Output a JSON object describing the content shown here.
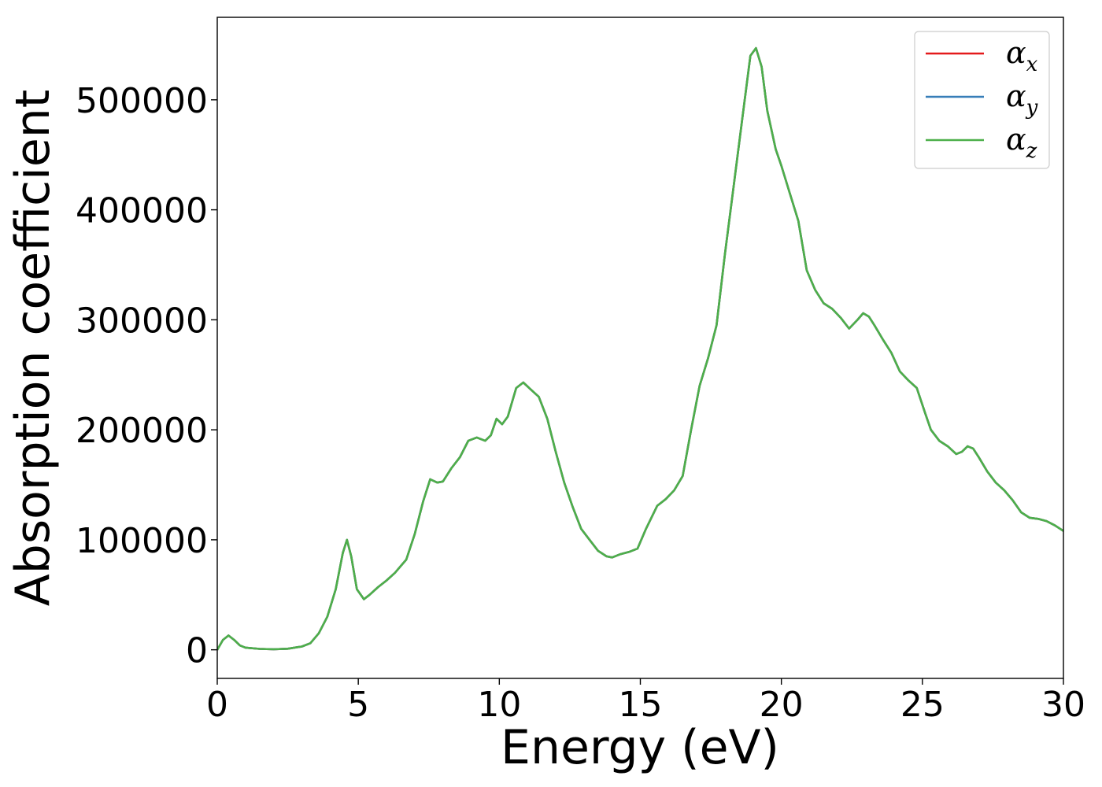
{
  "chart_data": {
    "type": "line",
    "title": "",
    "xlabel": "Energy (eV)",
    "ylabel": "Absorption coefficient",
    "xlim": [
      0,
      30
    ],
    "ylim": [
      -26000,
      575000
    ],
    "xticks": [
      0,
      5,
      10,
      15,
      20,
      25,
      30
    ],
    "yticks": [
      0,
      100000,
      200000,
      300000,
      400000,
      500000
    ],
    "grid": false,
    "legend_position": "top-right",
    "colors": {
      "alpha_x": "#e41a1c",
      "alpha_y": "#377eb8",
      "alpha_z": "#4daf4a"
    },
    "legend": [
      {
        "key": "alpha_x",
        "symbol": "α",
        "sub": "x"
      },
      {
        "key": "alpha_y",
        "symbol": "α",
        "sub": "y"
      },
      {
        "key": "alpha_z",
        "symbol": "α",
        "sub": "z"
      }
    ],
    "x": [
      0,
      0.2,
      0.4,
      0.6,
      0.8,
      1.0,
      1.5,
      2.0,
      2.5,
      3.0,
      3.3,
      3.6,
      3.9,
      4.2,
      4.45,
      4.6,
      4.75,
      4.95,
      5.2,
      5.4,
      5.7,
      6.0,
      6.3,
      6.7,
      7.0,
      7.3,
      7.55,
      7.8,
      8.0,
      8.3,
      8.6,
      8.9,
      9.2,
      9.5,
      9.7,
      9.9,
      10.1,
      10.3,
      10.6,
      10.85,
      11.1,
      11.4,
      11.7,
      12.0,
      12.3,
      12.6,
      12.9,
      13.2,
      13.5,
      13.8,
      14.0,
      14.3,
      14.6,
      14.9,
      15.2,
      15.6,
      15.9,
      16.2,
      16.5,
      16.8,
      17.1,
      17.4,
      17.7,
      18.0,
      18.3,
      18.6,
      18.9,
      19.1,
      19.3,
      19.5,
      19.8,
      20.0,
      20.3,
      20.6,
      20.9,
      21.2,
      21.5,
      21.8,
      22.1,
      22.4,
      22.7,
      22.9,
      23.1,
      23.3,
      23.6,
      23.9,
      24.2,
      24.5,
      24.8,
      25.1,
      25.3,
      25.6,
      25.9,
      26.2,
      26.4,
      26.6,
      26.8,
      27.0,
      27.3,
      27.6,
      27.9,
      28.2,
      28.5,
      28.8,
      29.1,
      29.4,
      29.7,
      30.0
    ],
    "series": [
      {
        "key": "alpha_x",
        "values": [
          0,
          9000,
          13000,
          9000,
          4000,
          2000,
          800,
          500,
          1000,
          3000,
          6000,
          15000,
          30000,
          55000,
          88000,
          100000,
          85000,
          55000,
          46000,
          50000,
          57000,
          63000,
          70000,
          82000,
          105000,
          135000,
          155000,
          152000,
          153000,
          165000,
          175000,
          190000,
          193000,
          190000,
          195000,
          210000,
          205000,
          212000,
          238000,
          243000,
          237000,
          230000,
          210000,
          180000,
          152000,
          130000,
          110000,
          100000,
          90000,
          85000,
          84000,
          87000,
          89000,
          92000,
          110000,
          131000,
          137000,
          145000,
          158000,
          200000,
          240000,
          265000,
          295000,
          360000,
          420000,
          480000,
          540000,
          547000,
          530000,
          490000,
          455000,
          440000,
          415000,
          390000,
          345000,
          327000,
          315000,
          310000,
          302000,
          292000,
          300000,
          306000,
          303000,
          295000,
          282000,
          270000,
          253000,
          245000,
          238000,
          215000,
          200000,
          190000,
          185000,
          178000,
          180000,
          185000,
          183000,
          175000,
          162000,
          152000,
          145000,
          136000,
          125000,
          120000,
          119000,
          117000,
          113000,
          108000
        ]
      },
      {
        "key": "alpha_y",
        "values": [
          0,
          9000,
          13000,
          9000,
          4000,
          2000,
          800,
          500,
          1000,
          3000,
          6000,
          15000,
          30000,
          55000,
          88000,
          100000,
          85000,
          55000,
          46000,
          50000,
          57000,
          63000,
          70000,
          82000,
          105000,
          135000,
          155000,
          152000,
          153000,
          165000,
          175000,
          190000,
          193000,
          190000,
          195000,
          210000,
          205000,
          212000,
          238000,
          243000,
          237000,
          230000,
          210000,
          180000,
          152000,
          130000,
          110000,
          100000,
          90000,
          85000,
          84000,
          87000,
          89000,
          92000,
          110000,
          131000,
          137000,
          145000,
          158000,
          200000,
          240000,
          265000,
          295000,
          360000,
          420000,
          480000,
          540000,
          547000,
          530000,
          490000,
          455000,
          440000,
          415000,
          390000,
          345000,
          327000,
          315000,
          310000,
          302000,
          292000,
          300000,
          306000,
          303000,
          295000,
          282000,
          270000,
          253000,
          245000,
          238000,
          215000,
          200000,
          190000,
          185000,
          178000,
          180000,
          185000,
          183000,
          175000,
          162000,
          152000,
          145000,
          136000,
          125000,
          120000,
          119000,
          117000,
          113000,
          108000
        ]
      },
      {
        "key": "alpha_z",
        "values": [
          0,
          9000,
          13000,
          9000,
          4000,
          2000,
          800,
          500,
          1000,
          3000,
          6000,
          15000,
          30000,
          55000,
          88000,
          100000,
          85000,
          55000,
          46000,
          50000,
          57000,
          63000,
          70000,
          82000,
          105000,
          135000,
          155000,
          152000,
          153000,
          165000,
          175000,
          190000,
          193000,
          190000,
          195000,
          210000,
          205000,
          212000,
          238000,
          243000,
          237000,
          230000,
          210000,
          180000,
          152000,
          130000,
          110000,
          100000,
          90000,
          85000,
          84000,
          87000,
          89000,
          92000,
          110000,
          131000,
          137000,
          145000,
          158000,
          200000,
          240000,
          265000,
          295000,
          360000,
          420000,
          480000,
          540000,
          547000,
          530000,
          490000,
          455000,
          440000,
          415000,
          390000,
          345000,
          327000,
          315000,
          310000,
          302000,
          292000,
          300000,
          306000,
          303000,
          295000,
          282000,
          270000,
          253000,
          245000,
          238000,
          215000,
          200000,
          190000,
          185000,
          178000,
          180000,
          185000,
          183000,
          175000,
          162000,
          152000,
          145000,
          136000,
          125000,
          120000,
          119000,
          117000,
          113000,
          108000
        ]
      }
    ]
  }
}
